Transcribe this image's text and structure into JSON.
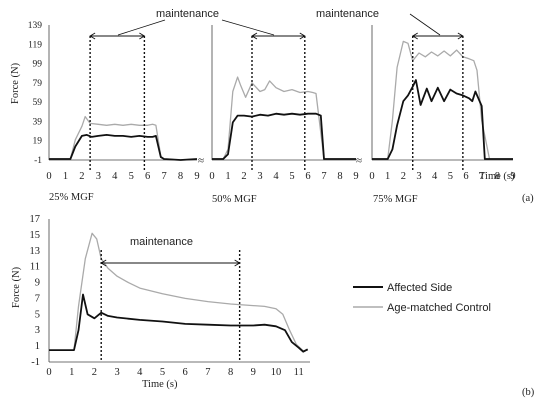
{
  "chart_data": [
    {
      "type": "line",
      "panel_label": "(a)",
      "ylabel": "Force (N)",
      "xlabel": "Time (s)",
      "yticks": [
        "139",
        "119",
        "99",
        "79",
        "59",
        "39",
        "19",
        "-1"
      ],
      "ylim": [
        -1,
        139
      ],
      "annotations": [
        "maintenance",
        "maintenance"
      ],
      "subplots": [
        {
          "condition_label": "25% MGF",
          "xticks": [
            "0",
            "1",
            "2",
            "3",
            "4",
            "5",
            "6",
            "7",
            "8",
            "9"
          ],
          "xlim": [
            0,
            9
          ],
          "maintenance": [
            2.5,
            5.8
          ],
          "maintenance_label": "maintenance",
          "series": [
            {
              "name": "Affected Side",
              "color": "#111111",
              "x": [
                0,
                1.0,
                1.3,
                1.6,
                2.0,
                2.3,
                2.6,
                3.0,
                3.5,
                4.0,
                4.5,
                5.0,
                5.5,
                6.0,
                6.3,
                6.5,
                6.8,
                7.0,
                8.0,
                9.0
              ],
              "y": [
                0,
                0,
                0,
                13,
                24,
                25,
                23,
                24,
                25,
                24,
                24,
                23,
                24,
                23,
                23,
                24,
                2,
                0,
                -1,
                0
              ]
            },
            {
              "name": "Age-matched Control",
              "color": "#aaaaaa",
              "x": [
                0,
                1.0,
                1.3,
                1.6,
                2.0,
                2.2,
                2.5,
                3.0,
                3.5,
                4.0,
                4.5,
                5.0,
                5.5,
                6.0,
                6.3,
                6.5,
                6.8,
                7.0,
                8.0,
                9.0
              ],
              "y": [
                0,
                0,
                0,
                20,
                34,
                44,
                37,
                36,
                35,
                36,
                35,
                36,
                35,
                35,
                36,
                35,
                3,
                0,
                -1,
                0
              ]
            }
          ]
        },
        {
          "condition_label": "50% MGF",
          "xticks": [
            "0",
            "1",
            "2",
            "3",
            "4",
            "5",
            "6",
            "7",
            "8",
            "9"
          ],
          "xlim": [
            0,
            9
          ],
          "maintenance": [
            2.5,
            5.8
          ],
          "maintenance_label": "",
          "series": [
            {
              "name": "Affected Side",
              "color": "#111111",
              "x": [
                0,
                0.7,
                1.0,
                1.3,
                1.6,
                2.0,
                2.5,
                3.0,
                3.5,
                4.0,
                4.5,
                5.0,
                5.5,
                6.0,
                6.5,
                6.8,
                7.0,
                8.0,
                9.0
              ],
              "y": [
                0,
                0,
                5,
                38,
                45,
                45,
                44,
                46,
                45,
                47,
                46,
                47,
                46,
                47,
                47,
                45,
                0,
                0,
                0
              ]
            },
            {
              "name": "Age-matched Control",
              "color": "#aaaaaa",
              "x": [
                0,
                0.7,
                1.0,
                1.3,
                1.6,
                1.8,
                2.1,
                2.5,
                3.0,
                3.3,
                3.6,
                4.0,
                4.5,
                5.0,
                5.5,
                6.0,
                6.3,
                6.5,
                7.0,
                8.0,
                9.0
              ],
              "y": [
                0,
                0,
                10,
                70,
                85,
                76,
                64,
                79,
                70,
                72,
                81,
                74,
                70,
                72,
                69,
                70,
                69,
                68,
                0,
                0,
                0
              ]
            }
          ]
        },
        {
          "condition_label": "75% MGF",
          "xticks": [
            "0",
            "1",
            "2",
            "3",
            "4",
            "5",
            "6",
            "7",
            "8",
            "9"
          ],
          "xlim": [
            0,
            9
          ],
          "maintenance": [
            2.6,
            5.8
          ],
          "maintenance_label": "maintenance",
          "series": [
            {
              "name": "Affected Side",
              "color": "#111111",
              "x": [
                0,
                1.0,
                1.3,
                1.6,
                2.0,
                2.3,
                2.6,
                2.8,
                3.1,
                3.5,
                3.8,
                4.2,
                4.6,
                5.0,
                5.4,
                5.8,
                6.2,
                6.4,
                6.6,
                7.0,
                7.2,
                8.0,
                9.0
              ],
              "y": [
                0,
                0,
                10,
                35,
                60,
                66,
                75,
                82,
                56,
                73,
                60,
                74,
                60,
                72,
                68,
                66,
                63,
                60,
                70,
                55,
                0,
                0,
                0
              ]
            },
            {
              "name": "Age-matched Control",
              "color": "#aaaaaa",
              "x": [
                0,
                1.0,
                1.3,
                1.6,
                2.0,
                2.3,
                2.6,
                3.0,
                3.4,
                3.8,
                4.2,
                4.6,
                5.0,
                5.4,
                5.8,
                6.2,
                6.5,
                6.7,
                7.0,
                7.5,
                8.0,
                9.0
              ],
              "y": [
                0,
                0,
                40,
                95,
                122,
                120,
                102,
                110,
                106,
                111,
                107,
                112,
                107,
                113,
                106,
                104,
                102,
                92,
                40,
                0,
                0,
                0
              ]
            }
          ]
        }
      ]
    },
    {
      "type": "line",
      "panel_label": "(b)",
      "ylabel": "Force (N)",
      "xlabel": "Time (s)",
      "yticks": [
        "17",
        "15",
        "13",
        "11",
        "9",
        "7",
        "5",
        "3",
        "1",
        "-1"
      ],
      "ylim": [
        -1,
        17
      ],
      "xticks": [
        "0",
        "1",
        "2",
        "3",
        "4",
        "5",
        "6",
        "7",
        "8",
        "9",
        "10",
        "11"
      ],
      "xlim": [
        0,
        11.5
      ],
      "maintenance": [
        2.3,
        8.4
      ],
      "annotation": "maintenance",
      "legend_position": "right",
      "series": [
        {
          "name": "Affected Side",
          "color": "#111111",
          "x": [
            0,
            1.1,
            1.3,
            1.5,
            1.7,
            2.0,
            2.3,
            2.6,
            3.0,
            4.0,
            5.0,
            6.0,
            7.0,
            8.0,
            9.0,
            9.5,
            10.0,
            10.4,
            10.7,
            11.0,
            11.2,
            11.4
          ],
          "y": [
            0.5,
            0.5,
            3.0,
            7.5,
            5.0,
            4.5,
            5.2,
            4.8,
            4.6,
            4.3,
            4.1,
            3.8,
            3.7,
            3.6,
            3.6,
            3.7,
            3.5,
            3.0,
            1.5,
            0.8,
            0.3,
            0.6
          ]
        },
        {
          "name": "Age-matched Control",
          "color": "#aaaaaa",
          "x": [
            0,
            1.1,
            1.3,
            1.6,
            1.9,
            2.1,
            2.3,
            2.6,
            3.0,
            3.5,
            4.0,
            5.0,
            6.0,
            7.0,
            8.0,
            9.0,
            9.5,
            10.0,
            10.3,
            10.6,
            10.9,
            11.2,
            11.4
          ],
          "y": [
            0.5,
            0.5,
            6.0,
            12.0,
            15.2,
            14.5,
            12.0,
            10.8,
            9.8,
            9.0,
            8.3,
            7.6,
            7.0,
            6.6,
            6.3,
            6.1,
            6.0,
            5.7,
            5.0,
            3.0,
            1.2,
            0.4,
            0.5
          ]
        }
      ]
    }
  ]
}
